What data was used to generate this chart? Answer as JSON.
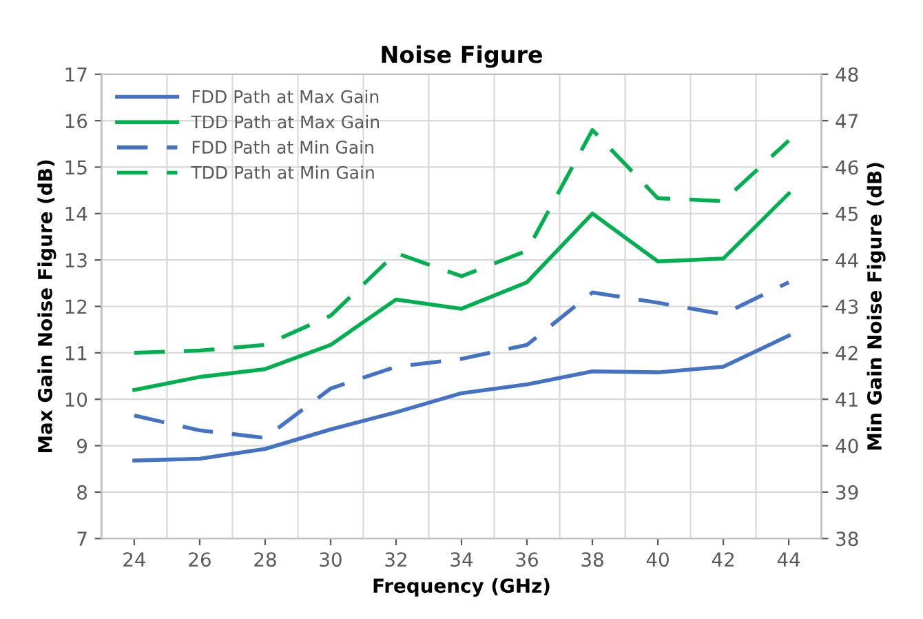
{
  "chart_data": {
    "type": "line",
    "title": "Noise Figure",
    "xlabel": "Frequency (GHz)",
    "ylabel": "Max Gain Noise Figure (dB)",
    "y2label": "Min Gain Noise Figure (dB)",
    "categories": [
      "24",
      "26",
      "28",
      "30",
      "32",
      "34",
      "36",
      "38",
      "40",
      "42",
      "44"
    ],
    "series": [
      {
        "name": "FDD Path at Max Gain",
        "color": "#4472c4",
        "line_style": "solid",
        "values": [
          8.68,
          8.72,
          8.93,
          9.35,
          9.72,
          10.13,
          10.32,
          10.6,
          10.58,
          10.7,
          11.37
        ]
      },
      {
        "name": "TDD Path at Max Gain",
        "color": "#00b050",
        "line_style": "solid",
        "values": [
          10.2,
          10.48,
          10.65,
          11.17,
          12.15,
          11.95,
          12.52,
          14.0,
          12.97,
          13.03,
          14.43
        ]
      },
      {
        "name": "FDD Path at Min Gain",
        "color": "#4472c4",
        "line_style": "dashed",
        "axis": "y2",
        "values": [
          40.65,
          40.33,
          40.17,
          41.23,
          41.7,
          41.87,
          42.17,
          43.3,
          43.08,
          42.83,
          43.52
        ]
      },
      {
        "name": "TDD Path at Min Gain",
        "color": "#00b050",
        "line_style": "dashed",
        "axis": "y2",
        "values": [
          42.0,
          42.05,
          42.17,
          42.8,
          44.15,
          43.65,
          44.2,
          46.8,
          45.33,
          45.27,
          46.57
        ]
      }
    ],
    "ylim": [
      7,
      17
    ],
    "yticks": [
      7,
      8,
      9,
      10,
      11,
      12,
      13,
      14,
      15,
      16,
      17
    ],
    "y2lim": [
      38,
      48
    ],
    "y2ticks": [
      38,
      39,
      40,
      41,
      42,
      43,
      44,
      45,
      46,
      47,
      48
    ],
    "grid": true,
    "legend": "top left",
    "marker": "none"
  }
}
